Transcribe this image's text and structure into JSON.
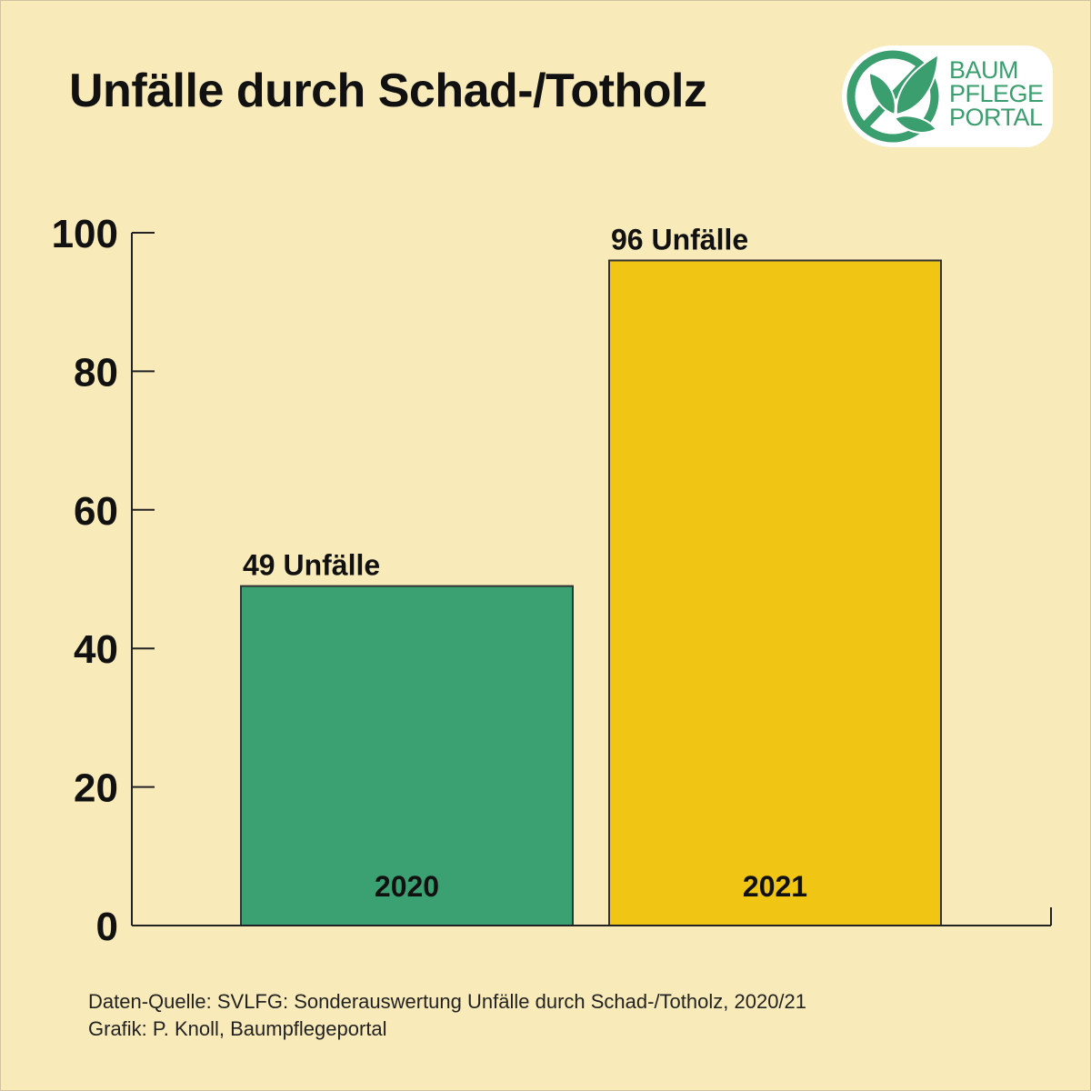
{
  "title": "Unfälle durch Schad-/Totholz",
  "logo": {
    "lines": [
      "BAUM",
      "PFLEGE",
      "PORTAL"
    ],
    "color": "#3a9e6e"
  },
  "chart_data": {
    "type": "bar",
    "title": "Unfälle durch Schad-/Totholz",
    "categories": [
      "2020",
      "2021"
    ],
    "values": [
      49,
      96
    ],
    "data_labels": [
      "49 Unfälle",
      "96 Unfälle"
    ],
    "colors": [
      "#3ba072",
      "#f0c514"
    ],
    "xlabel": "",
    "ylabel": "",
    "ylim": [
      0,
      100
    ],
    "yticks": [
      0,
      20,
      40,
      60,
      80,
      100
    ],
    "ytick_labels": [
      "0",
      "20",
      "40",
      "60",
      "80",
      "100"
    ],
    "grid": false,
    "legend": "none"
  },
  "source": {
    "line1": "Daten-Quelle: SVLFG: Sonderauswertung Unfälle durch Schad-/Totholz, 2020/21",
    "line2": "Grafik: P. Knoll, Baumpflegeportal"
  }
}
